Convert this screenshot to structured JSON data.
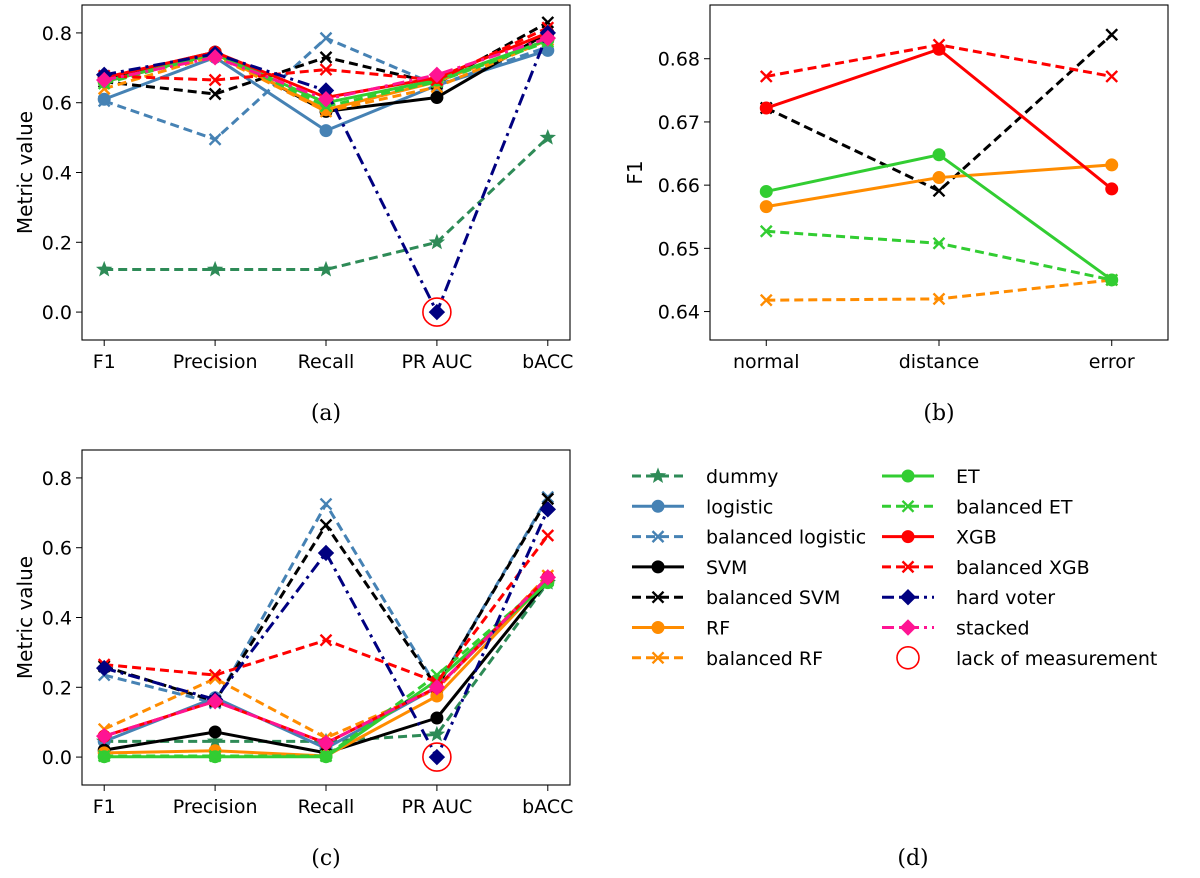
{
  "chart_data": [
    {
      "type": "line",
      "panel": "a",
      "caption": "(a)",
      "categories": [
        "F1",
        "Precision",
        "Recall",
        "PR AUC",
        "bACC"
      ],
      "ylabel": "Metric value",
      "ylim": [
        -0.08,
        0.88
      ],
      "yticks": [
        "0.0",
        "0.2",
        "0.4",
        "0.6",
        "0.8"
      ],
      "missing_marker": {
        "category": "PR AUC",
        "value": 0.0
      },
      "series": [
        {
          "key": "dummy",
          "values": [
            0.122,
            0.122,
            0.122,
            0.2,
            0.5
          ]
        },
        {
          "key": "logistic",
          "values": [
            0.61,
            0.73,
            0.52,
            0.65,
            0.75
          ]
        },
        {
          "key": "balanced_logistic",
          "values": [
            0.605,
            0.495,
            0.785,
            0.65,
            0.76
          ]
        },
        {
          "key": "svm",
          "values": [
            0.67,
            0.745,
            0.575,
            0.615,
            0.8
          ]
        },
        {
          "key": "balanced_svm",
          "values": [
            0.66,
            0.625,
            0.73,
            0.655,
            0.83
          ]
        },
        {
          "key": "rf",
          "values": [
            0.66,
            0.74,
            0.58,
            0.66,
            0.78
          ]
        },
        {
          "key": "balanced_rf",
          "values": [
            0.64,
            0.735,
            0.575,
            0.645,
            0.78
          ]
        },
        {
          "key": "et",
          "values": [
            0.66,
            0.74,
            0.6,
            0.665,
            0.78
          ]
        },
        {
          "key": "balanced_et",
          "values": [
            0.655,
            0.74,
            0.59,
            0.66,
            0.775
          ]
        },
        {
          "key": "xgb",
          "values": [
            0.672,
            0.745,
            0.615,
            0.672,
            0.8
          ]
        },
        {
          "key": "balanced_xgb",
          "values": [
            0.677,
            0.665,
            0.695,
            0.665,
            0.815
          ]
        },
        {
          "key": "hard_voter",
          "values": [
            0.68,
            0.74,
            0.635,
            0.0,
            0.8
          ]
        },
        {
          "key": "stacked",
          "values": [
            0.665,
            0.73,
            0.61,
            0.68,
            0.785
          ]
        }
      ]
    },
    {
      "type": "line",
      "panel": "b",
      "caption": "(b)",
      "categories": [
        "normal",
        "distance",
        "error"
      ],
      "ylabel": "F1",
      "ylim": [
        0.6355,
        0.6885
      ],
      "yticks": [
        "0.64",
        "0.65",
        "0.66",
        "0.67",
        "0.68"
      ],
      "series": [
        {
          "key": "svm",
          "values": [
            0.6722,
            0.6591,
            0.6838
          ],
          "style": "balanced_svm"
        },
        {
          "key": "rf",
          "values": [
            0.6566,
            0.6612,
            0.6632
          ]
        },
        {
          "key": "balanced_rf",
          "values": [
            0.6418,
            0.642,
            0.645
          ]
        },
        {
          "key": "et",
          "values": [
            0.659,
            0.6648,
            0.645
          ]
        },
        {
          "key": "balanced_et",
          "values": [
            0.6527,
            0.6508,
            0.645
          ]
        },
        {
          "key": "xgb",
          "values": [
            0.6722,
            0.6815,
            0.6594
          ]
        },
        {
          "key": "balanced_xgb",
          "values": [
            0.6772,
            0.6822,
            0.6772
          ]
        }
      ]
    },
    {
      "type": "line",
      "panel": "c",
      "caption": "(c)",
      "categories": [
        "F1",
        "Precision",
        "Recall",
        "PR AUC",
        "bACC"
      ],
      "ylabel": "Metric value",
      "ylim": [
        -0.08,
        0.88
      ],
      "yticks": [
        "0.0",
        "0.2",
        "0.4",
        "0.6",
        "0.8"
      ],
      "missing_marker": {
        "category": "PR AUC",
        "value": 0.0
      },
      "series": [
        {
          "key": "dummy",
          "values": [
            0.045,
            0.045,
            0.045,
            0.065,
            0.5
          ]
        },
        {
          "key": "logistic",
          "values": [
            0.045,
            0.17,
            0.025,
            0.2,
            0.51
          ]
        },
        {
          "key": "balanced_logistic",
          "values": [
            0.235,
            0.155,
            0.725,
            0.2,
            0.745
          ]
        },
        {
          "key": "svm",
          "values": [
            0.02,
            0.072,
            0.012,
            0.112,
            0.505
          ]
        },
        {
          "key": "balanced_svm",
          "values": [
            0.26,
            0.16,
            0.665,
            0.2,
            0.74
          ]
        },
        {
          "key": "rf",
          "values": [
            0.012,
            0.018,
            0.003,
            0.175,
            0.51
          ]
        },
        {
          "key": "balanced_rf",
          "values": [
            0.08,
            0.225,
            0.055,
            0.195,
            0.52
          ]
        },
        {
          "key": "et",
          "values": [
            0.001,
            0.001,
            0.001,
            0.22,
            0.5
          ]
        },
        {
          "key": "balanced_et",
          "values": [
            0.003,
            0.003,
            0.003,
            0.235,
            0.505
          ]
        },
        {
          "key": "xgb",
          "values": [
            0.06,
            0.16,
            0.04,
            0.2,
            0.515
          ]
        },
        {
          "key": "balanced_xgb",
          "values": [
            0.265,
            0.235,
            0.335,
            0.215,
            0.635
          ]
        },
        {
          "key": "hard_voter",
          "values": [
            0.255,
            0.165,
            0.585,
            0.0,
            0.71
          ]
        },
        {
          "key": "stacked",
          "values": [
            0.06,
            0.16,
            0.04,
            0.2,
            0.515
          ]
        }
      ]
    }
  ],
  "series_styles": {
    "dummy": {
      "color": "#2e8b57",
      "dash": "9,5",
      "marker": "star"
    },
    "logistic": {
      "color": "#4682b4",
      "dash": "",
      "marker": "circle"
    },
    "balanced_logistic": {
      "color": "#4682b4",
      "dash": "9,5",
      "marker": "x"
    },
    "svm": {
      "color": "#000000",
      "dash": "",
      "marker": "circle"
    },
    "balanced_svm": {
      "color": "#000000",
      "dash": "9,5",
      "marker": "x"
    },
    "rf": {
      "color": "#ff8c00",
      "dash": "",
      "marker": "circle"
    },
    "balanced_rf": {
      "color": "#ff8c00",
      "dash": "9,5",
      "marker": "x"
    },
    "et": {
      "color": "#32cd32",
      "dash": "",
      "marker": "circle"
    },
    "balanced_et": {
      "color": "#32cd32",
      "dash": "9,5",
      "marker": "x"
    },
    "xgb": {
      "color": "#ff0000",
      "dash": "",
      "marker": "circle"
    },
    "balanced_xgb": {
      "color": "#ff0000",
      "dash": "9,5",
      "marker": "x"
    },
    "hard_voter": {
      "color": "#000080",
      "dash": "12,5,3,5",
      "marker": "diamond"
    },
    "stacked": {
      "color": "#ff1493",
      "dash": "12,5,3,5",
      "marker": "diamond"
    },
    "missing_color": "#ff0000"
  },
  "legend": {
    "caption": "(d)",
    "items": [
      {
        "key": "dummy",
        "label": "dummy"
      },
      {
        "key": "logistic",
        "label": "logistic"
      },
      {
        "key": "balanced_logistic",
        "label": "balanced logistic"
      },
      {
        "key": "svm",
        "label": "SVM"
      },
      {
        "key": "balanced_svm",
        "label": "balanced SVM"
      },
      {
        "key": "rf",
        "label": "RF"
      },
      {
        "key": "balanced_rf",
        "label": "balanced RF"
      },
      {
        "key": "et",
        "label": "ET"
      },
      {
        "key": "balanced_et",
        "label": "balanced ET"
      },
      {
        "key": "xgb",
        "label": "XGB"
      },
      {
        "key": "balanced_xgb",
        "label": "balanced XGB"
      },
      {
        "key": "hard_voter",
        "label": "hard voter"
      },
      {
        "key": "stacked",
        "label": "stacked"
      },
      {
        "key": "missing",
        "label": "lack of measurement"
      }
    ]
  }
}
